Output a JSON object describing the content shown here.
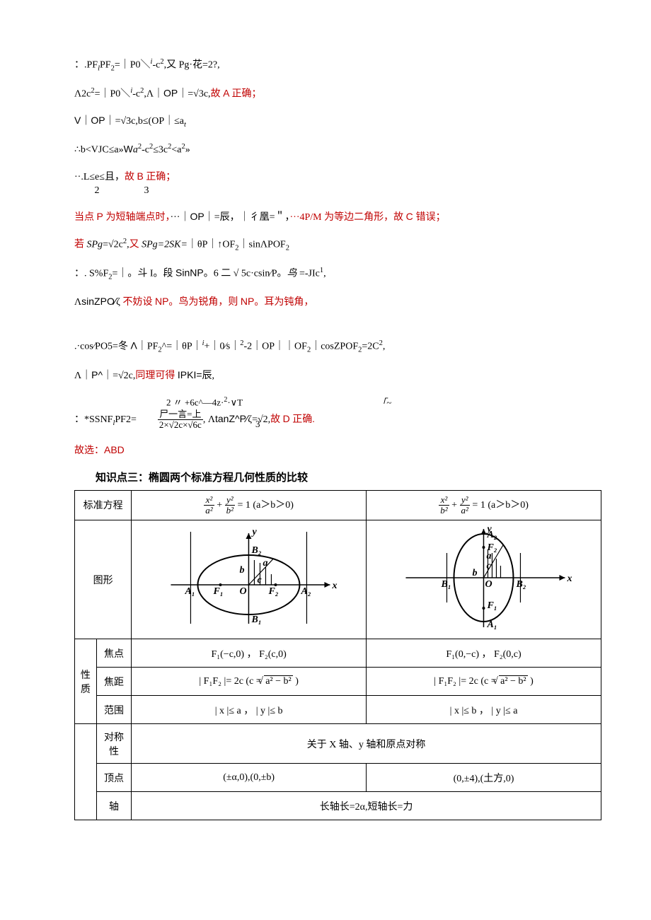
{
  "solution_lines": [
    {
      "segments": [
        {
          "cls": "black",
          "t": "：.PF"
        },
        {
          "cls": "black sub ital",
          "t": "l"
        },
        {
          "cls": "black",
          "t": "PF"
        },
        {
          "cls": "black sub",
          "t": "2"
        },
        {
          "cls": "black",
          "t": "=｜P0＼"
        },
        {
          "cls": "black sup ital",
          "t": "i"
        },
        {
          "cls": "black",
          "t": "-c"
        },
        {
          "cls": "black sup",
          "t": "2"
        },
        {
          "cls": "black",
          "t": ",又 Pg·花=2?,"
        }
      ]
    },
    {
      "segments": [
        {
          "cls": "black",
          "t": "Λ2c"
        },
        {
          "cls": "black sup",
          "t": "2"
        },
        {
          "cls": "black",
          "t": "=｜P0＼"
        },
        {
          "cls": "black sup ital",
          "t": "i"
        },
        {
          "cls": "black",
          "t": "-c"
        },
        {
          "cls": "black sup",
          "t": "2"
        },
        {
          "cls": "black",
          "t": ",Λ｜"
        },
        {
          "cls": "black arial",
          "t": "OP"
        },
        {
          "cls": "black",
          "t": "｜=√3c,"
        },
        {
          "cls": "red",
          "t": "故 "
        },
        {
          "cls": "red arial",
          "t": "A "
        },
        {
          "cls": "red",
          "t": "正确；"
        }
      ]
    },
    {
      "segments": [
        {
          "cls": "black arial",
          "t": "V"
        },
        {
          "cls": "black",
          "t": "｜"
        },
        {
          "cls": "black arial",
          "t": "OP"
        },
        {
          "cls": "black",
          "t": "｜=√3c,b≤(OP｜≤a"
        },
        {
          "cls": "black sub ital",
          "t": "t"
        }
      ]
    },
    {
      "segments": [
        {
          "cls": "black",
          "t": "∴b<VJC≤a»"
        },
        {
          "cls": "black arial",
          "t": "W"
        },
        {
          "cls": "black ital",
          "t": "a"
        },
        {
          "cls": "black sup",
          "t": "2"
        },
        {
          "cls": "black",
          "t": "-c"
        },
        {
          "cls": "black sup",
          "t": "2"
        },
        {
          "cls": "black",
          "t": "≤3c"
        },
        {
          "cls": "black sup",
          "t": "2"
        },
        {
          "cls": "black",
          "t": "<a"
        },
        {
          "cls": "black sup",
          "t": "2"
        },
        {
          "cls": "black",
          "t": "»"
        }
      ]
    },
    {
      "type": "frac_line",
      "pre": "··.L≤e≤且，",
      "num": "",
      "nums": [
        "2",
        "3"
      ],
      "post": "故 B 正确；",
      "red_part": "故 B 正确；"
    },
    {
      "segments": [
        {
          "cls": "red",
          "t": "当点 "
        },
        {
          "cls": "red arial",
          "t": "P "
        },
        {
          "cls": "red",
          "t": "为短轴端点时，"
        },
        {
          "cls": "black",
          "t": "···｜"
        },
        {
          "cls": "black arial",
          "t": "OP"
        },
        {
          "cls": "black",
          "t": "｜=辰，｜彳凰=＂，"
        },
        {
          "cls": "red",
          "t": "···4P/M 为等边二角形，故 "
        },
        {
          "cls": "red arial",
          "t": "C "
        },
        {
          "cls": "red",
          "t": "错误；"
        }
      ]
    },
    {
      "segments": [
        {
          "cls": "red",
          "t": "若"
        },
        {
          "cls": "black ital",
          "t": " SPg"
        },
        {
          "cls": "black",
          "t": "=√2c"
        },
        {
          "cls": "black sup",
          "t": "2"
        },
        {
          "cls": "black",
          "t": ","
        },
        {
          "cls": "red",
          "t": "又"
        },
        {
          "cls": "black ital",
          "t": " SPg=2SK="
        },
        {
          "cls": "black",
          "t": "｜θP｜↑OF"
        },
        {
          "cls": "black sub",
          "t": "2"
        },
        {
          "cls": "black",
          "t": "｜sinΛPOF"
        },
        {
          "cls": "black sub",
          "t": "2"
        }
      ]
    },
    {
      "segments": [
        {
          "cls": "black",
          "t": "：. S%F"
        },
        {
          "cls": "black sub",
          "t": "2"
        },
        {
          "cls": "black",
          "t": "=｜。斗 I。段 "
        },
        {
          "cls": "black arial",
          "t": "SinNP"
        },
        {
          "cls": "black",
          "t": "。6 二 "
        },
        {
          "cls": "black ital",
          "t": "√"
        },
        {
          "cls": "black",
          "t": " 5c·csin∕P。"
        },
        {
          "cls": "black ital",
          "t": "鸟"
        },
        {
          "cls": "black",
          "t": " =-JIc"
        },
        {
          "cls": "black sup",
          "t": "1"
        },
        {
          "cls": "black",
          "t": ","
        }
      ]
    },
    {
      "segments": [
        {
          "cls": "black",
          "t": "Λ"
        },
        {
          "cls": "black arial",
          "t": "sinZPO∕"
        },
        {
          "cls": "black",
          "t": "ζ            "
        },
        {
          "cls": "red",
          "t": "不妨设 "
        },
        {
          "cls": "red arial",
          "t": "NP"
        },
        {
          "cls": "red",
          "t": "。鸟为锐角，则 "
        },
        {
          "cls": "red arial",
          "t": "NP"
        },
        {
          "cls": "red",
          "t": "。耳为钝角，"
        }
      ]
    },
    {
      "type": "spacer"
    },
    {
      "segments": [
        {
          "cls": "black",
          "t": ".·cos∕PO5=冬 "
        },
        {
          "cls": "black arial",
          "t": "Λ"
        },
        {
          "cls": "black",
          "t": "｜PF"
        },
        {
          "cls": "black sub",
          "t": "2"
        },
        {
          "cls": "black",
          "t": "^=｜θP｜"
        },
        {
          "cls": "black sup ital",
          "t": "i"
        },
        {
          "cls": "black",
          "t": "+｜0∕s｜"
        },
        {
          "cls": "black sup",
          "t": "2"
        },
        {
          "cls": "black",
          "t": "-2｜OP｜｜OF"
        },
        {
          "cls": "black sub",
          "t": "2"
        },
        {
          "cls": "black",
          "t": "｜cosZPOF"
        },
        {
          "cls": "black sub",
          "t": "2"
        },
        {
          "cls": "black",
          "t": "=2C"
        },
        {
          "cls": "black sup",
          "t": "2"
        },
        {
          "cls": "black",
          "t": ","
        }
      ]
    },
    {
      "segments": [
        {
          "cls": "black",
          "t": "Λ｜"
        },
        {
          "cls": "black arial",
          "t": "P^"
        },
        {
          "cls": "black",
          "t": "｜=√2c,"
        },
        {
          "cls": "red",
          "t": "同理可得"
        },
        {
          "cls": "black",
          "t": " "
        },
        {
          "cls": "black arial",
          "t": "IPKI="
        },
        {
          "cls": "black",
          "t": "辰,"
        }
      ]
    },
    {
      "type": "triple_frac"
    },
    {
      "segments": [
        {
          "cls": "red",
          "t": "故选："
        },
        {
          "cls": "red arial",
          "t": "ABD"
        }
      ]
    }
  ],
  "kp3_title": "知识点三：椭圆两个标准方程几何性质的比较",
  "table": {
    "header_col1": "标准方程",
    "eq1": {
      "num": "x²",
      "den1": "a²",
      "num2": "y²",
      "den2": "b²",
      "cond": "(a＞b＞0)"
    },
    "eq2": {
      "num": "x²",
      "den1": "b²",
      "num2": "y²",
      "den2": "a²",
      "cond": "(a＞b＞0)"
    },
    "fig_label": "图形",
    "prop_label": "性\n质",
    "focus_label": "焦点",
    "focus1": "F₁(−c,0) ，  F₂(c,0)",
    "focus2": "F₁(0,−c) ，  F₂(0,c)",
    "focaldist_label": "焦距",
    "focaldist1_pre": "| F₁F₂ |= 2c (c = ",
    "focaldist1_sqrt": "a² − b²",
    "focaldist1_post": " )",
    "focaldist2_pre": "| F₁F₂ |= 2c (c = ",
    "focaldist2_sqrt": "a² − b²",
    "focaldist2_post": " )",
    "range_label": "范围",
    "range1": "| x |≤ a ，  | y |≤ b",
    "range2": "| x |≤ b ，  | y |≤ a",
    "symmetry_label": "对称\n性",
    "symmetry_val": "关于 X 轴、y 轴和原点对称",
    "vertex_label": "顶点",
    "vertex1": "(±α,0),(0,±b)",
    "vertex2": "(0,±4),(土方,0)",
    "axis_label": "轴",
    "axis_val": "长轴长=2α,短轴长=力"
  },
  "fig1_labels": {
    "A1": "A₁",
    "A2": "A₂",
    "B1": "B₁",
    "B2": "B₂",
    "F1": "F₁",
    "F2": "F₂",
    "O": "O",
    "a": "a",
    "b": "b",
    "c": "c",
    "x": "x",
    "y": "y"
  },
  "fig2_labels": {
    "A1": "A₁",
    "A2": "A₂",
    "B1": "B₁",
    "B2": "B₂",
    "F1": "F₁",
    "F2": "F₂",
    "O": "O",
    "a": "a",
    "b": "b",
    "c": "c",
    "x": "x",
    "y": "y"
  },
  "colors": {
    "black": "#000000",
    "red": "#c00000",
    "bg": "#ffffff",
    "border": "#000000"
  }
}
